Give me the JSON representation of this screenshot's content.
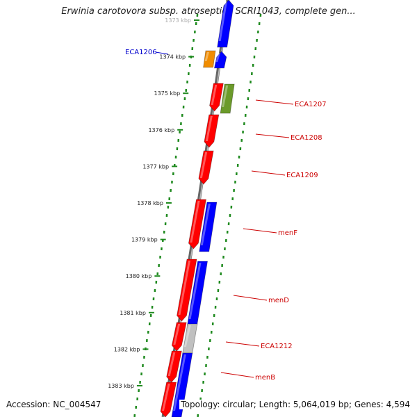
{
  "title": "Erwinia carotovora subsp. atroseptica SCRI1043, complete gen...",
  "footer": {
    "accession": "Accession: NC_004547",
    "stats": "Topology: circular; Length: 5,064,019 bp; Genes: 4,594"
  },
  "axis": {
    "ticks": [
      {
        "label": "1373 kbp",
        "kbp": 1373
      },
      {
        "label": "1374 kbp",
        "kbp": 1374
      },
      {
        "label": "1375 kbp",
        "kbp": 1375
      },
      {
        "label": "1376 kbp",
        "kbp": 1376
      },
      {
        "label": "1377 kbp",
        "kbp": 1377
      },
      {
        "label": "1378 kbp",
        "kbp": 1378
      },
      {
        "label": "1379 kbp",
        "kbp": 1379
      },
      {
        "label": "1380 kbp",
        "kbp": 1380
      },
      {
        "label": "1381 kbp",
        "kbp": 1381
      },
      {
        "label": "1382 kbp",
        "kbp": 1382
      },
      {
        "label": "1383 kbp",
        "kbp": 1383
      }
    ]
  },
  "genes": [
    {
      "label": "ECA1206",
      "side": "left",
      "label_color": "#0000cc"
    },
    {
      "label": "ECA1207",
      "side": "right",
      "label_color": "#cc0000"
    },
    {
      "label": "ECA1208",
      "side": "right",
      "label_color": "#cc0000"
    },
    {
      "label": "ECA1209",
      "side": "right",
      "label_color": "#cc0000"
    },
    {
      "label": "menF",
      "side": "right",
      "label_color": "#cc0000"
    },
    {
      "label": "menD",
      "side": "right",
      "label_color": "#cc0000"
    },
    {
      "label": "ECA1212",
      "side": "right",
      "label_color": "#cc0000"
    },
    {
      "label": "menB",
      "side": "right",
      "label_color": "#cc0000"
    }
  ],
  "colors": {
    "forward_strand": "#ff0000",
    "reverse_strand": "#0000ff",
    "other_feature": "#f08c00",
    "rna_feature": "#6b9a2a",
    "pseudogene": "#c0c0c0",
    "backbone": "#888888",
    "tick_ring": "#1f8a1f"
  }
}
